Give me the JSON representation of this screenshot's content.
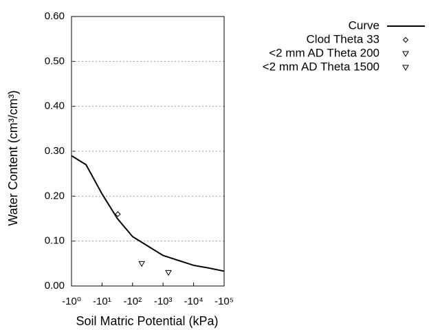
{
  "chart_data": {
    "type": "line",
    "x_label": "Soil Matric Potential (kPa)",
    "y_label": "Water Content (cm³/cm³)",
    "xlog": true,
    "xlim": [
      1,
      100000
    ],
    "xticks": [
      {
        "value": 1,
        "label": "-10⁰"
      },
      {
        "value": 10,
        "label": "-10¹"
      },
      {
        "value": 100,
        "label": "-10²"
      },
      {
        "value": 1000,
        "label": "-10³"
      },
      {
        "value": 10000,
        "label": "-10⁴"
      },
      {
        "value": 100000,
        "label": "-10⁵"
      }
    ],
    "ylim": [
      0,
      0.6
    ],
    "yticks": [
      {
        "value": 0,
        "label": "0.00"
      },
      {
        "value": 0.1,
        "label": "0.10"
      },
      {
        "value": 0.2,
        "label": "0.20"
      },
      {
        "value": 0.3,
        "label": "0.30"
      },
      {
        "value": 0.4,
        "label": "0.40"
      },
      {
        "value": 0.5,
        "label": "0.50"
      },
      {
        "value": 0.6,
        "label": "0.60"
      }
    ],
    "grid": true,
    "legend": "right",
    "series": [
      {
        "name": "Curve",
        "color": "#000000",
        "marker": "line",
        "x": [
          1,
          3,
          10,
          32,
          100,
          316,
          1000,
          3162,
          10000,
          31623,
          100000
        ],
        "values": [
          0.29,
          0.27,
          0.205,
          0.15,
          0.11,
          0.089,
          0.068,
          0.057,
          0.046,
          0.04,
          0.033
        ]
      },
      {
        "name": "Clod Theta 33",
        "color": "#000000",
        "marker": "diamond",
        "x": [
          33
        ],
        "values": [
          0.16
        ]
      },
      {
        "name": "<2 mm AD Theta 200",
        "color": "#000000",
        "marker": "triangle-down",
        "x": [
          200
        ],
        "values": [
          0.05
        ]
      },
      {
        "name": "<2 mm AD Theta 1500",
        "color": "#000000",
        "marker": "triangle-down",
        "x": [
          1500
        ],
        "values": [
          0.03
        ]
      }
    ]
  }
}
